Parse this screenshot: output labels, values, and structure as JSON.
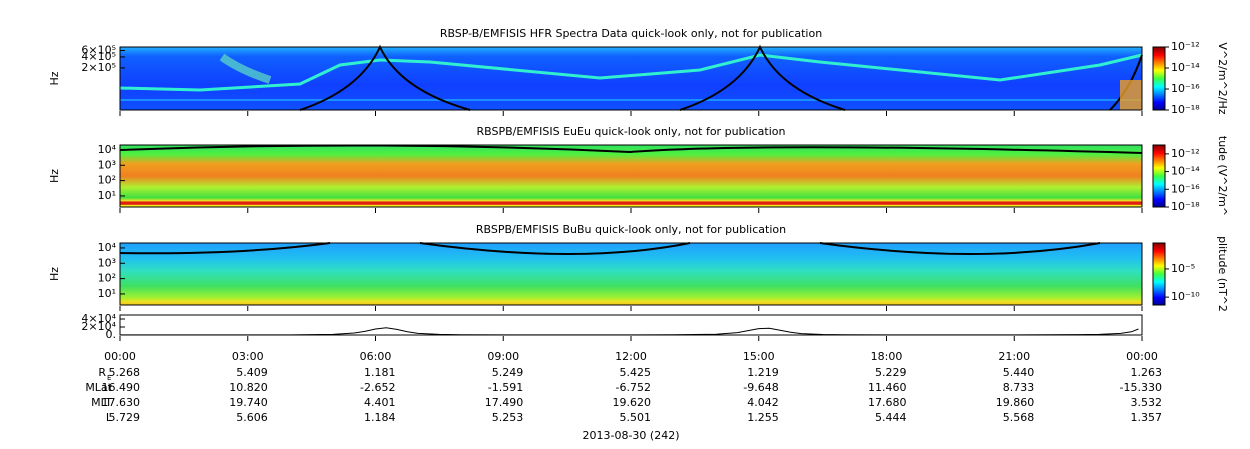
{
  "chart_data": [
    {
      "type": "spectrogram",
      "title": "RBSP-B/EMFISIS  HFR Spectra Data quick-look only, not for publication",
      "ylabel": "Hz",
      "log_y": true,
      "ylim": [
        14000,
        750000
      ],
      "yticks": [
        {
          "value": 600000,
          "label": "6×10⁵"
        },
        {
          "value": 400000,
          "label": "4×10⁵"
        },
        {
          "value": 200000,
          "label": "2×10⁵"
        }
      ],
      "colorbar_label": "V^2/m^2/Hz",
      "clim": [
        1e-18,
        1e-12
      ],
      "cticks": [
        {
          "value": 1e-12,
          "label": "10⁻¹²"
        },
        {
          "value": 1e-14,
          "label": "10⁻¹⁴"
        },
        {
          "value": 1e-16,
          "label": "10⁻¹⁶"
        },
        {
          "value": 1e-18,
          "label": "10⁻¹⁸"
        }
      ]
    },
    {
      "type": "spectrogram",
      "title": "RBSPB/EMFISIS  EuEu quick-look only, not for publication",
      "ylabel": "Hz",
      "log_y": true,
      "ylim": [
        1.9,
        21000
      ],
      "yticks": [
        {
          "value": 10000,
          "label": "10⁴"
        },
        {
          "value": 1000,
          "label": "10³"
        },
        {
          "value": 100,
          "label": "10²"
        },
        {
          "value": 10,
          "label": "10¹"
        }
      ],
      "colorbar_label": "tude (V^2/m^",
      "clim": [
        1e-18,
        1e-11
      ],
      "cticks": [
        {
          "value": 1e-12,
          "label": "10⁻¹²"
        },
        {
          "value": 1e-14,
          "label": "10⁻¹⁴"
        },
        {
          "value": 1e-16,
          "label": "10⁻¹⁶"
        },
        {
          "value": 1e-18,
          "label": "10⁻¹⁸"
        }
      ]
    },
    {
      "type": "spectrogram",
      "title": "RBSPB/EMFISIS  BuBu quick-look only, not for publication",
      "ylabel": "Hz",
      "log_y": true,
      "ylim": [
        1.9,
        21000
      ],
      "yticks": [
        {
          "value": 10000,
          "label": "10⁴"
        },
        {
          "value": 1000,
          "label": "10³"
        },
        {
          "value": 100,
          "label": "10²"
        },
        {
          "value": 10,
          "label": "10¹"
        }
      ],
      "colorbar_label": "plitude (nT^2",
      "clim": [
        4e-12,
        0.4
      ],
      "cticks": [
        {
          "value": 1e-05,
          "label": "10⁻⁵"
        },
        {
          "value": 1e-10,
          "label": "10⁻¹⁰"
        }
      ]
    },
    {
      "type": "line",
      "log_y": false,
      "ylim": [
        0,
        50000
      ],
      "color": "#000000",
      "yticks": [
        {
          "value": 40000,
          "label": "4×10⁴"
        },
        {
          "value": 20000,
          "label": "2×10⁴"
        },
        {
          "value": 0,
          "label": "0."
        }
      ],
      "x": [
        "00:00",
        "02:00",
        "04:00",
        "05:00",
        "05:30",
        "05:45",
        "06:00",
        "06:15",
        "06:30",
        "06:45",
        "07:00",
        "07:30",
        "08:00",
        "10:00",
        "12:00",
        "13:00",
        "14:00",
        "14:30",
        "14:45",
        "15:00",
        "15:15",
        "15:30",
        "15:45",
        "16:00",
        "16:30",
        "17:00",
        "19:00",
        "21:00",
        "22:30",
        "23:00",
        "23:30",
        "23:45",
        "23:55"
      ],
      "values": [
        300,
        200,
        400,
        1500,
        5000,
        9000,
        15000,
        18000,
        14000,
        8000,
        4000,
        1500,
        600,
        300,
        300,
        600,
        2000,
        6000,
        11000,
        16000,
        17000,
        12000,
        7000,
        3500,
        1200,
        500,
        200,
        300,
        800,
        1500,
        4000,
        8000,
        15000
      ],
      "time_ticks": [
        "00:00",
        "03:00",
        "06:00",
        "09:00",
        "12:00",
        "15:00",
        "18:00",
        "21:00",
        "00:00"
      ],
      "xlabel": "2013-08-30 (242)"
    }
  ],
  "ephemeris": {
    "rows": [
      {
        "label": "R",
        "label_sub": "E",
        "values": [
          "5.268",
          "5.409",
          "1.181",
          "5.249",
          "5.425",
          "1.219",
          "5.229",
          "5.440",
          "1.263"
        ]
      },
      {
        "label": "MLat",
        "values": [
          "16.490",
          "10.820",
          "-2.652",
          "-1.591",
          "-6.752",
          "-9.648",
          "11.460",
          "8.733",
          "-15.330"
        ]
      },
      {
        "label": "MLT",
        "values": [
          "17.630",
          "19.740",
          "4.401",
          "17.490",
          "19.620",
          "4.042",
          "17.680",
          "19.860",
          "3.532"
        ]
      },
      {
        "label": "L",
        "values": [
          "5.729",
          "5.606",
          "1.184",
          "5.253",
          "5.501",
          "1.255",
          "5.444",
          "5.568",
          "1.357"
        ]
      }
    ]
  }
}
